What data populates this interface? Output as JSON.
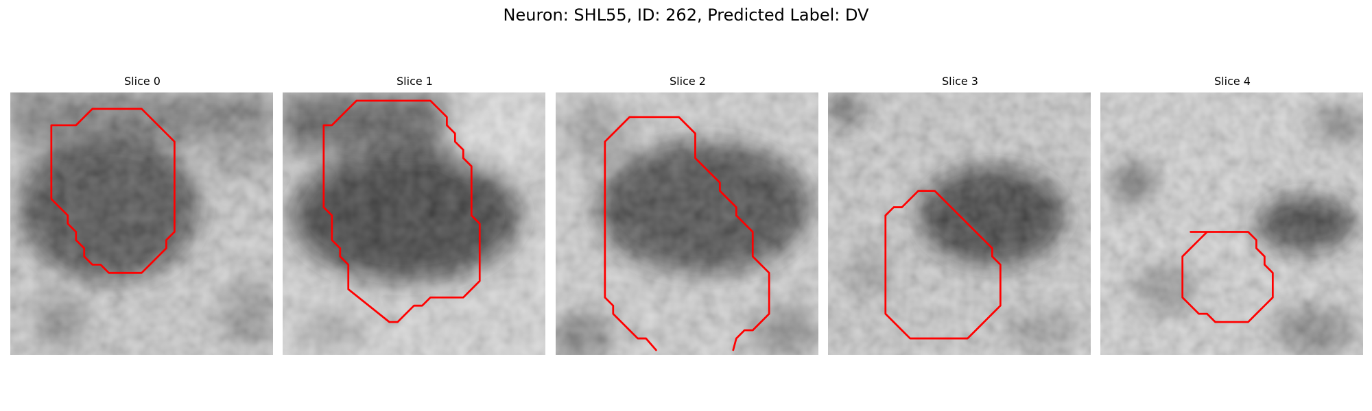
{
  "figure": {
    "title": "Neuron: SHL55, ID: 262, Predicted Label: DV"
  },
  "panels": [
    {
      "title": "Slice 0"
    },
    {
      "title": "Slice 1"
    },
    {
      "title": "Slice 2"
    },
    {
      "title": "Slice 3"
    },
    {
      "title": "Slice 4"
    }
  ],
  "colors": {
    "contour": "#ff0000"
  }
}
